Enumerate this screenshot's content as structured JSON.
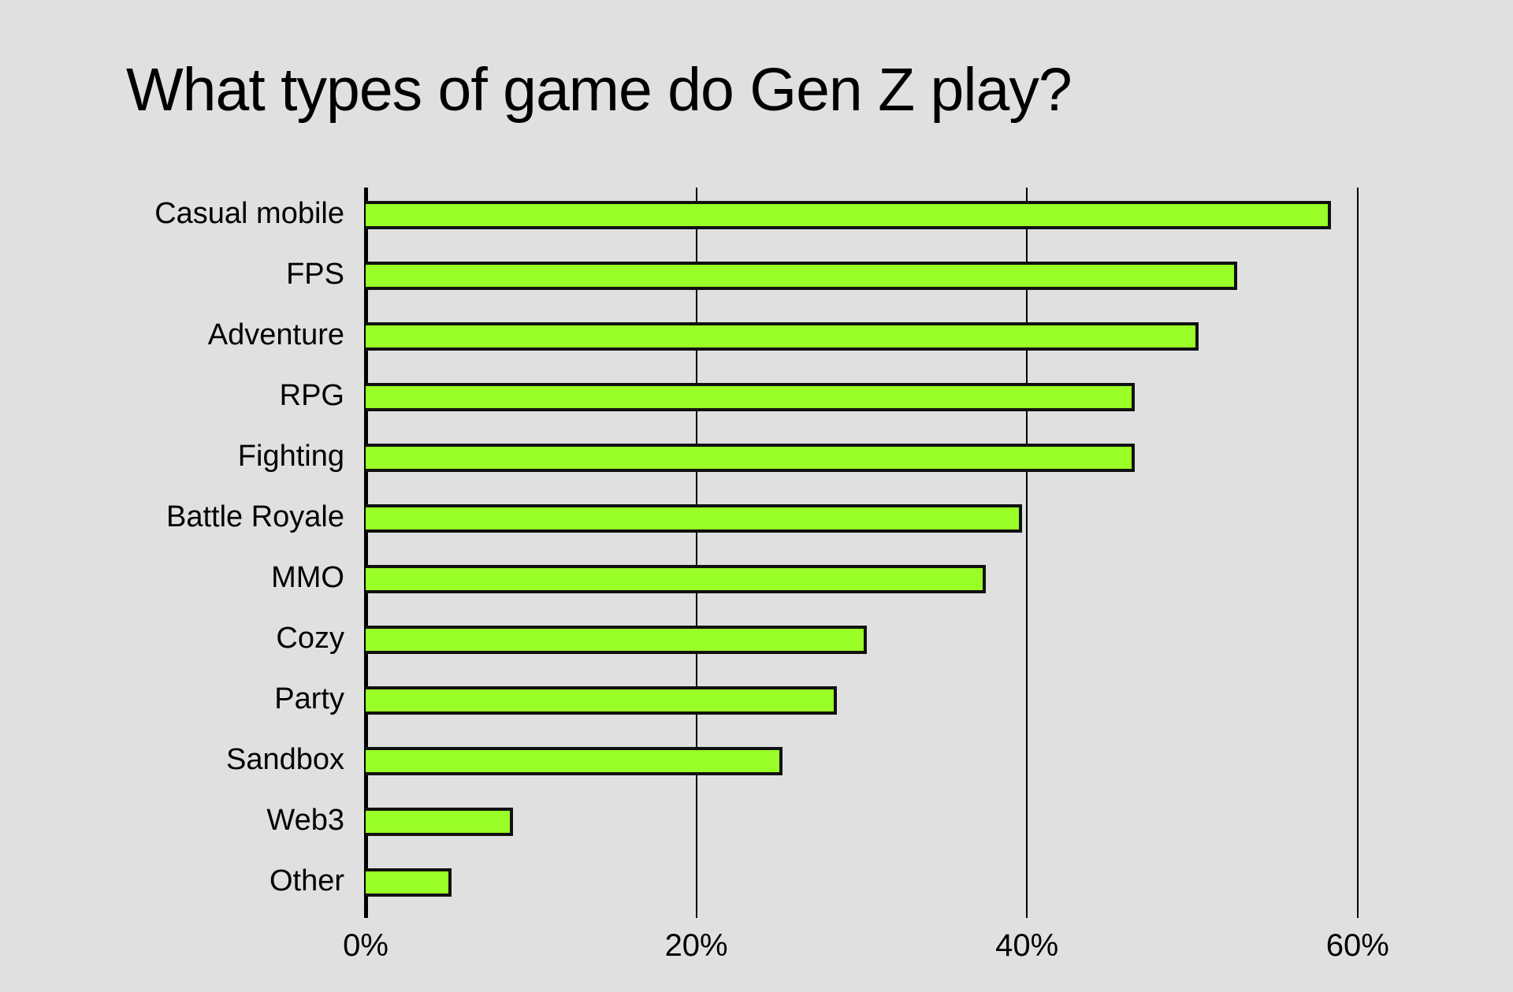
{
  "title": "What types of game do Gen Z play?",
  "chart_data": {
    "type": "bar",
    "orientation": "horizontal",
    "title": "What types of game do Gen Z play?",
    "xlabel": "",
    "ylabel": "",
    "categories": [
      "Casual mobile",
      "FPS",
      "Adventure",
      "RPG",
      "Fighting",
      "Battle Royale",
      "MMO",
      "Cozy",
      "Party",
      "Sandbox",
      "Web3",
      "Other"
    ],
    "values": [
      58.4,
      52.7,
      50.4,
      46.5,
      46.5,
      39.7,
      37.5,
      30.3,
      28.5,
      25.2,
      8.9,
      5.2
    ],
    "unit": "%",
    "xlim": [
      0,
      60
    ],
    "xticks": [
      "0%",
      "20%",
      "40%",
      "60%"
    ],
    "grid": true,
    "legend": null,
    "bar_color": "#99ff26",
    "bar_edge_color": "#111111",
    "background_color": "#e0e0e0"
  }
}
